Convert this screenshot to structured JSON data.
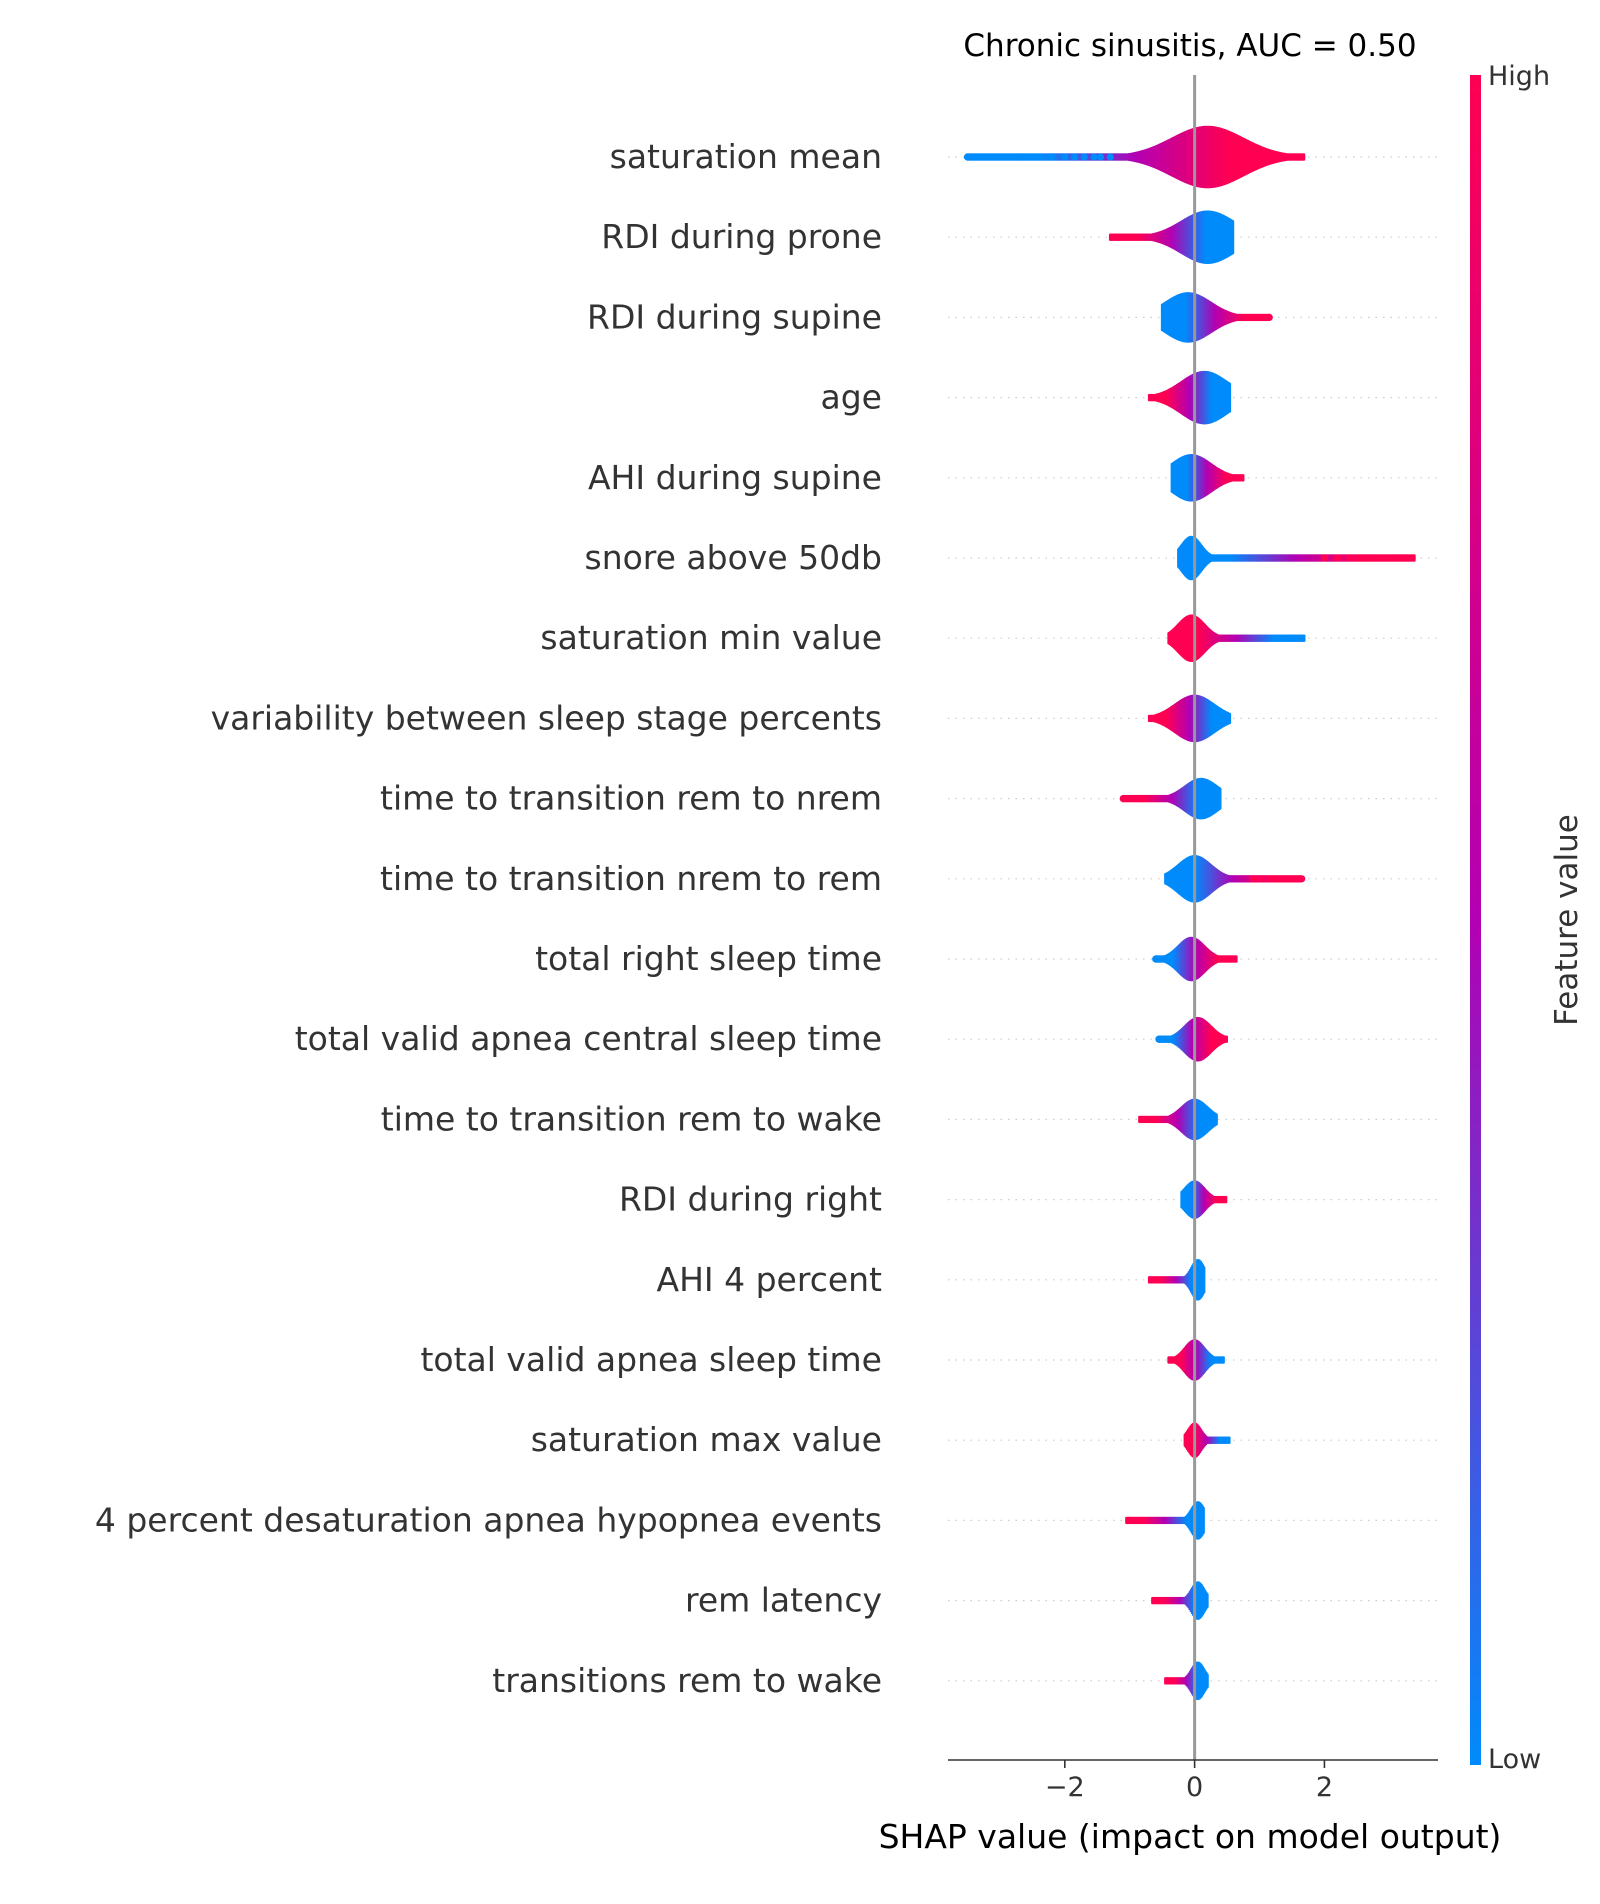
{
  "chart_data": {
    "type": "scatter",
    "subtype": "shap-violin-summary",
    "title": "Chronic sinusitis, AUC =  0.50",
    "xlabel": "SHAP value (impact on model output)",
    "ylabel": "",
    "xlim": [
      -3.8,
      3.75
    ],
    "xticks": [
      -2,
      0,
      2
    ],
    "xtick_labels": [
      "−2",
      "0",
      "2"
    ],
    "zero_line": 0,
    "grid": false,
    "colorbar": {
      "label": "Feature value",
      "high_label": "High",
      "low_label": "Low",
      "high_color": "#ff0052",
      "low_color": "#008bfb",
      "mid_color": "#b300b3"
    },
    "features": [
      {
        "name": "saturation mean",
        "center": 0.2,
        "min": -3.5,
        "max": 1.7,
        "spread": 0.55,
        "width": 1.0,
        "outliers": [
          -3.5,
          -2.7,
          -2.2,
          -2.0,
          -1.85,
          -1.7,
          -1.55,
          -1.45,
          -1.3,
          1.35,
          1.5,
          1.65
        ],
        "low_side": "left"
      },
      {
        "name": "RDI during prone",
        "center": 0.2,
        "min": -1.3,
        "max": 0.6,
        "spread": 0.4,
        "width": 0.85,
        "outliers": [],
        "low_side": "right"
      },
      {
        "name": "RDI during supine",
        "center": -0.1,
        "min": -0.5,
        "max": 1.15,
        "spread": 0.35,
        "width": 0.8,
        "outliers": [
          1.15
        ],
        "low_side": "left"
      },
      {
        "name": "age",
        "center": 0.15,
        "min": -0.7,
        "max": 0.55,
        "spread": 0.35,
        "width": 0.85,
        "outliers": [],
        "low_side": "right"
      },
      {
        "name": "AHI during supine",
        "center": -0.05,
        "min": -0.35,
        "max": 0.75,
        "spread": 0.3,
        "width": 0.75,
        "outliers": [],
        "low_side": "left"
      },
      {
        "name": "snore above 50db",
        "center": -0.05,
        "min": -0.25,
        "max": 3.4,
        "spread": 0.15,
        "width": 0.7,
        "outliers": [
          2.0,
          2.2,
          2.4,
          2.55,
          2.7,
          3.05,
          3.2,
          3.35
        ],
        "low_side": "left"
      },
      {
        "name": "saturation min value",
        "center": -0.05,
        "min": -0.4,
        "max": 1.7,
        "spread": 0.2,
        "width": 0.75,
        "outliers": [
          1.3,
          1.45,
          1.55,
          1.65
        ],
        "low_side": "right"
      },
      {
        "name": "variability between sleep stage percents",
        "center": 0.0,
        "min": -0.7,
        "max": 0.55,
        "spread": 0.3,
        "width": 0.75,
        "outliers": [],
        "low_side": "right"
      },
      {
        "name": "time to transition rem to nrem",
        "center": 0.1,
        "min": -1.1,
        "max": 0.4,
        "spread": 0.25,
        "width": 0.65,
        "outliers": [
          -1.1,
          -0.8
        ],
        "low_side": "right"
      },
      {
        "name": "time to transition nrem to rem",
        "center": 0.0,
        "min": -0.45,
        "max": 1.65,
        "spread": 0.25,
        "width": 0.75,
        "outliers": [
          0.9,
          1.0,
          1.65
        ],
        "low_side": "left"
      },
      {
        "name": "total right sleep time",
        "center": -0.05,
        "min": -0.6,
        "max": 0.65,
        "spread": 0.2,
        "width": 0.7,
        "outliers": [
          -0.6,
          -0.4
        ],
        "low_side": "left"
      },
      {
        "name": "total valid apnea central sleep time",
        "center": 0.05,
        "min": -0.55,
        "max": 0.5,
        "spread": 0.2,
        "width": 0.7,
        "outliers": [
          -0.55,
          -0.4
        ],
        "low_side": "left"
      },
      {
        "name": "time to transition rem to wake",
        "center": 0.0,
        "min": -0.85,
        "max": 0.35,
        "spread": 0.2,
        "width": 0.65,
        "outliers": [],
        "low_side": "right"
      },
      {
        "name": "RDI during right",
        "center": 0.0,
        "min": -0.2,
        "max": 0.5,
        "spread": 0.15,
        "width": 0.6,
        "outliers": [],
        "low_side": "left"
      },
      {
        "name": "AHI 4 percent",
        "center": 0.05,
        "min": -0.7,
        "max": 0.15,
        "spread": 0.1,
        "width": 0.65,
        "outliers": [],
        "low_side": "right"
      },
      {
        "name": "total valid apnea sleep time",
        "center": 0.0,
        "min": -0.4,
        "max": 0.45,
        "spread": 0.15,
        "width": 0.65,
        "outliers": [],
        "low_side": "right"
      },
      {
        "name": "saturation max value",
        "center": 0.0,
        "min": -0.15,
        "max": 0.55,
        "spread": 0.1,
        "width": 0.55,
        "outliers": [],
        "low_side": "right"
      },
      {
        "name": "4 percent desaturation apnea hypopnea events",
        "center": 0.05,
        "min": -1.05,
        "max": 0.15,
        "spread": 0.1,
        "width": 0.6,
        "outliers": [
          -1.0
        ],
        "low_side": "right"
      },
      {
        "name": "rem latency",
        "center": 0.05,
        "min": -0.65,
        "max": 0.2,
        "spread": 0.1,
        "width": 0.6,
        "outliers": [],
        "low_side": "right"
      },
      {
        "name": "transitions rem to wake",
        "center": 0.05,
        "min": -0.45,
        "max": 0.2,
        "spread": 0.1,
        "width": 0.6,
        "outliers": [],
        "low_side": "right"
      }
    ]
  }
}
